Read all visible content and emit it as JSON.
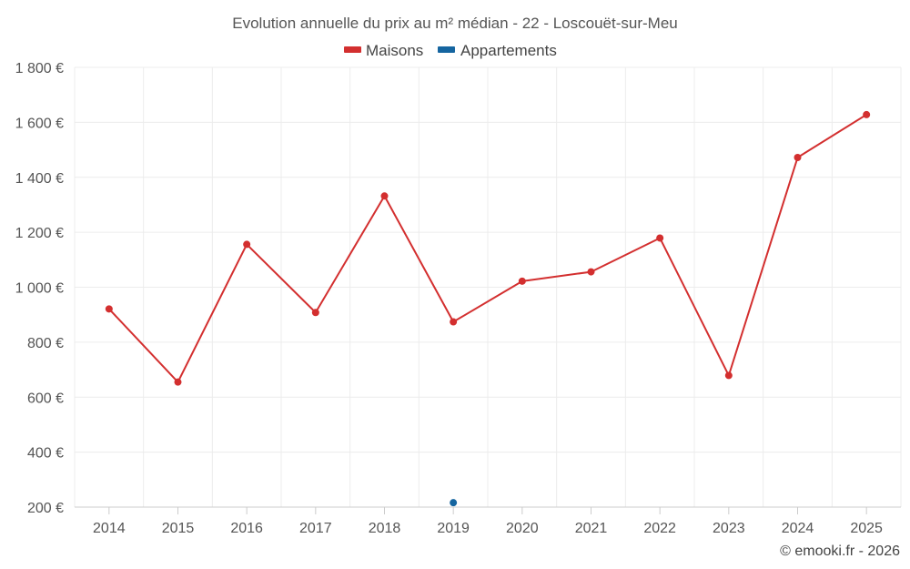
{
  "chart_data": {
    "type": "line",
    "title": "Evolution annuelle du prix au m² médian - 22 - Loscouët-sur-Meu",
    "categories": [
      "2014",
      "2015",
      "2016",
      "2017",
      "2018",
      "2019",
      "2020",
      "2021",
      "2022",
      "2023",
      "2024",
      "2025"
    ],
    "series": [
      {
        "name": "Maisons",
        "color": "#d32f2f",
        "values": [
          921,
          655,
          1156,
          908,
          1332,
          874,
          1022,
          1056,
          1179,
          679,
          1472,
          1628
        ]
      },
      {
        "name": "Appartements",
        "color": "#1565a0",
        "values": [
          null,
          null,
          null,
          null,
          null,
          216,
          null,
          null,
          null,
          null,
          null,
          null
        ]
      }
    ],
    "y_ticks": [
      200,
      400,
      600,
      800,
      1000,
      1200,
      1400,
      1600,
      1800
    ],
    "y_tick_labels": [
      "200 €",
      "400 €",
      "600 €",
      "800 €",
      "1 000 €",
      "1 200 €",
      "1 400 €",
      "1 600 €",
      "1 800 €"
    ],
    "ylim": [
      200,
      1800
    ],
    "xlabel": "",
    "ylabel": "",
    "legend_position": "top-center",
    "grid": true
  },
  "credit": "© emooki.fr - 2026"
}
